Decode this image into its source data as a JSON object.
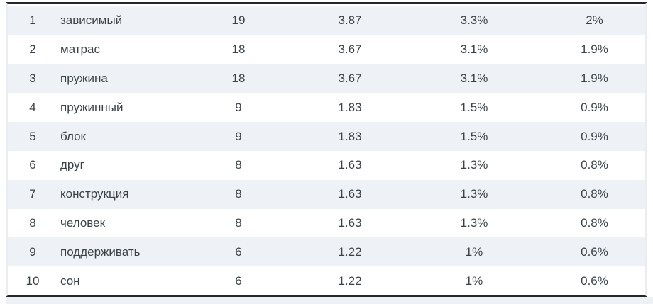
{
  "colors": {
    "row_alt_bg": "#eef1f6",
    "row_bg": "#ffffff",
    "text": "#3a4147",
    "rank_text": "#b7bec7",
    "border_dark": "#24262a",
    "border_side": "#e9edf3",
    "bottom_strip_bg": "#edf0f5"
  },
  "table": {
    "rows": [
      [
        "1",
        "зависимый",
        "19",
        "3.87",
        "3.3%",
        "2%"
      ],
      [
        "2",
        "матрас",
        "18",
        "3.67",
        "3.1%",
        "1.9%"
      ],
      [
        "3",
        "пружина",
        "18",
        "3.67",
        "3.1%",
        "1.9%"
      ],
      [
        "4",
        "пружинный",
        "9",
        "1.83",
        "1.5%",
        "0.9%"
      ],
      [
        "5",
        "блок",
        "9",
        "1.83",
        "1.5%",
        "0.9%"
      ],
      [
        "6",
        "друг",
        "8",
        "1.63",
        "1.3%",
        "0.8%"
      ],
      [
        "7",
        "конструкция",
        "8",
        "1.63",
        "1.3%",
        "0.8%"
      ],
      [
        "8",
        "человек",
        "8",
        "1.63",
        "1.3%",
        "0.8%"
      ],
      [
        "9",
        "поддерживать",
        "6",
        "1.22",
        "1%",
        "0.6%"
      ],
      [
        "10",
        "сон",
        "6",
        "1.22",
        "1%",
        "0.6%"
      ]
    ]
  }
}
